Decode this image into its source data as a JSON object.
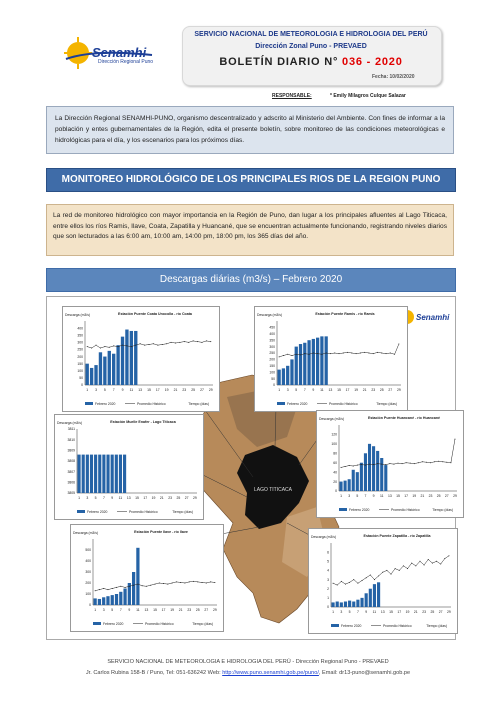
{
  "header": {
    "title": "SERVICIO NACIONAL DE METEOROLOGIA E HIDROLOGIA DEL PERÚ",
    "subtitle": "Dirección Zonal Puno - PREVAED",
    "bulletin_prefix": "BOLETÍN DIARIO N°",
    "bulletin_number": "036 - 2020",
    "date": "Fecha: 10/02/2020",
    "responsable_label": "RESPONSABLE:",
    "responsable_name": "* Emily Milagros Culque Salazar"
  },
  "logo": {
    "name": "Senamhi",
    "sub": "Dirección Regional Puno"
  },
  "intro_text": "La Dirección Regional SENAMHI-PUNO, organismo descentralizado y adscrito al Ministerio del Ambiente. Con fines de informar a la población y entes gubernamentales de la Región, edita el presente boletín, sobre monitoreo de las condiciones meteorológicas e hidrológicas para el día, y los escenarios para los próximos días.",
  "section_title": "MONITOREO HIDROLÓGICO DE LOS PRINCIPALES RIOS DE LA REGION PUNO",
  "section_text": "La red de monitoreo hidrológico con mayor importancia en la Región de Puno, dan lugar a los principales afluentes al Lago Titicaca, entre ellos los ríos Ramis, Ilave, Coata, Zapatilla y Huancané, que se encuentran actualmente funcionando, registrando niveles diarios que son lecturados a las 6:00 am, 10:00 am, 14:00 pm, 18:00 pm, los 365 días del año.",
  "chart_section_title": "Descargas diárias (m3/s) – Febrero 2020",
  "map_label": "LAGO TITICACA",
  "chart_data": [
    {
      "type": "bar",
      "title": "Estación Puente Coata Unocolla - río Coata",
      "ylabel": "Descarga (m3/s)",
      "xlabel": "Tiempo (días)",
      "ylim": [
        0,
        450
      ],
      "y_ticks": [
        0,
        50,
        100,
        150,
        200,
        250,
        300,
        350,
        400
      ],
      "x_ticks": [
        1,
        3,
        5,
        7,
        9,
        11,
        13,
        15,
        17,
        19,
        21,
        23,
        25,
        27,
        29
      ],
      "series": [
        {
          "name": "Febrero 2020",
          "values": [
            150,
            120,
            140,
            230,
            200,
            240,
            220,
            280,
            340,
            390,
            380,
            380
          ]
        },
        {
          "name": "Promedio Histórico",
          "values": [
            270,
            260,
            280,
            260,
            270,
            265,
            275,
            270,
            280,
            275,
            270,
            280,
            290,
            280,
            285,
            290,
            280,
            285,
            290,
            300,
            295,
            300,
            305,
            300,
            310,
            305,
            300,
            310,
            305
          ]
        }
      ]
    },
    {
      "type": "bar",
      "title": "Estación Puente Ramis - río Ramis",
      "ylabel": "Descarga (m3/s)",
      "xlabel": "Tiempo (días)",
      "ylim": [
        0,
        500
      ],
      "y_ticks": [
        0,
        50,
        100,
        150,
        200,
        250,
        300,
        350,
        400,
        450
      ],
      "x_ticks": [
        1,
        3,
        5,
        7,
        9,
        11,
        13,
        15,
        17,
        19,
        21,
        23,
        25,
        27,
        29
      ],
      "series": [
        {
          "name": "Febrero 2020",
          "values": [
            120,
            130,
            150,
            200,
            300,
            320,
            330,
            350,
            360,
            370,
            380,
            380
          ]
        },
        {
          "name": "Promedio Histórico",
          "values": [
            220,
            230,
            240,
            230,
            240,
            235,
            245,
            240,
            250,
            245,
            240,
            250,
            245,
            250,
            245,
            250,
            255,
            250,
            245,
            250,
            255,
            250,
            245,
            255,
            250,
            245,
            250,
            240,
            320
          ]
        }
      ]
    },
    {
      "type": "bar",
      "title": "Estación Muelle Enafer - Lago Titicaca",
      "ylabel": "Descarga (m3/s)",
      "xlabel": "Tiempo (días)",
      "ylim": [
        3805,
        3811
      ],
      "y_ticks": [
        3805,
        3806,
        3807,
        3808,
        3809,
        3810,
        3811
      ],
      "x_ticks": [
        1,
        3,
        5,
        7,
        9,
        11,
        13,
        15,
        17,
        19,
        21,
        23,
        25,
        27,
        29
      ],
      "series": [
        {
          "name": "Febrero 2020",
          "values": [
            3808.6,
            3808.6,
            3808.6,
            3808.6,
            3808.6,
            3808.6,
            3808.6,
            3808.6,
            3808.6,
            3808.6,
            3808.6,
            3808.6
          ]
        },
        {
          "name": "Promedio Histórico",
          "values": []
        }
      ]
    },
    {
      "type": "bar",
      "title": "Estación Puente Huancané - río Huancané",
      "ylabel": "Descarga (m3/s)",
      "xlabel": "Tiempo (días)",
      "ylim": [
        0,
        140
      ],
      "y_ticks": [
        0,
        20,
        40,
        60,
        80,
        100,
        120
      ],
      "x_ticks": [
        1,
        3,
        5,
        7,
        9,
        11,
        13,
        15,
        17,
        19,
        21,
        23,
        25,
        27,
        29
      ],
      "series": [
        {
          "name": "Febrero 2020",
          "values": [
            20,
            22,
            25,
            45,
            40,
            60,
            80,
            100,
            95,
            85,
            70,
            55
          ]
        },
        {
          "name": "Promedio Histórico",
          "values": [
            50,
            52,
            54,
            53,
            55,
            56,
            55,
            57,
            56,
            58,
            57,
            56,
            58,
            57,
            59,
            58,
            60,
            59,
            58,
            60,
            62,
            61,
            60,
            62,
            63,
            62,
            61,
            60,
            110
          ]
        }
      ]
    },
    {
      "type": "bar",
      "title": "Estación Puente Ilave - río Ilave",
      "ylabel": "Descarga (m3/s)",
      "xlabel": "Tiempo (días)",
      "ylim": [
        0,
        600
      ],
      "y_ticks": [
        0,
        100,
        200,
        300,
        400,
        500
      ],
      "x_ticks": [
        1,
        3,
        5,
        7,
        9,
        11,
        13,
        15,
        17,
        19,
        21,
        23,
        25,
        27,
        29
      ],
      "series": [
        {
          "name": "Febrero 2020",
          "values": [
            60,
            55,
            70,
            80,
            90,
            100,
            120,
            150,
            200,
            300,
            520,
            0
          ]
        },
        {
          "name": "Promedio Histórico",
          "values": [
            130,
            140,
            150,
            140,
            150,
            160,
            170,
            160,
            170,
            180,
            190,
            175,
            170,
            180,
            190,
            200,
            195,
            190,
            200,
            210,
            205,
            200,
            210,
            215,
            210,
            205,
            200,
            210,
            205
          ]
        }
      ]
    },
    {
      "type": "bar",
      "title": "Estación Puente Zapatilla - río Zapatilla",
      "ylabel": "Descarga (m3/s)",
      "xlabel": "Tiempo (días)",
      "ylim": [
        0,
        7
      ],
      "y_ticks": [
        0,
        1,
        2,
        3,
        4,
        5,
        6
      ],
      "x_ticks": [
        1,
        3,
        5,
        7,
        9,
        11,
        13,
        15,
        17,
        19,
        21,
        23,
        25,
        27,
        29
      ],
      "series": [
        {
          "name": "Febrero 2020",
          "values": [
            0.5,
            0.6,
            0.5,
            0.6,
            0.7,
            0.6,
            0.8,
            1.0,
            1.5,
            2.0,
            2.5,
            2.7
          ]
        },
        {
          "name": "Promedio Histórico",
          "values": [
            2.6,
            2.4,
            2.8,
            2.5,
            2.7,
            3.0,
            2.6,
            2.9,
            3.2,
            3.5,
            3.0,
            3.4,
            3.8,
            4.0,
            3.6,
            4.2,
            4.0,
            4.5,
            4.2,
            4.8,
            4.5,
            5.0,
            4.6,
            5.2,
            4.8,
            5.0,
            4.7,
            5.3,
            5.6
          ]
        }
      ]
    }
  ],
  "footer": {
    "line1": "SERVICIO NACIONAL DE METEOROLOGIA E HIDROLOGIA DEL PERÚ - Dirección Regional Puno - PREVAED",
    "line2_prefix": "Jr. Carlos Rubina 158-B / Puno, Tel: 051-636242 Web:",
    "link": "http://www.puno.senamhi.gob.pe/puno/",
    "line2_suffix": ", Email: dr13-puno@senamhi.gob.pe"
  },
  "colors": {
    "bar": "#2563a6",
    "band": "#3f6ca8",
    "intro_bg": "#dce4ee",
    "para_bg": "#f3e3c8",
    "accent_red": "#e00000"
  }
}
